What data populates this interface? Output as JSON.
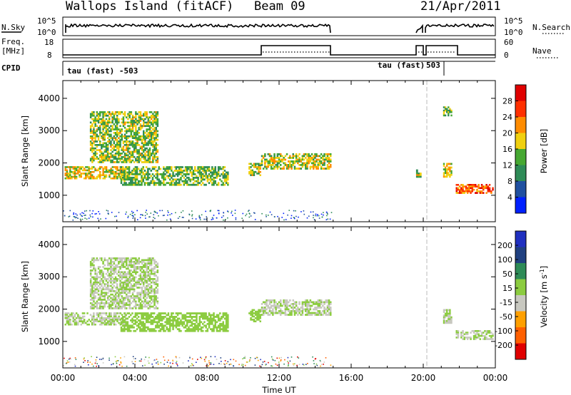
{
  "header": {
    "title": "Wallops Island (fitACF)",
    "beam": "Beam 09",
    "date": "21/Apr/2011"
  },
  "strip_labels": {
    "nsky": "N.Sky",
    "nsky_ticks": [
      "10^5",
      "10^0"
    ],
    "nsearch": "N.Search",
    "nsearch_ticks": [
      "10^5",
      "10^0"
    ],
    "freq_line1": "Freq.",
    "freq_line2": "[MHz]",
    "freq_ticks": [
      "18",
      "8"
    ],
    "nave": "Nave",
    "nave_ticks": [
      "60",
      "0"
    ],
    "cpid": "CPID"
  },
  "cpid_labels": [
    "tau (fast) -503",
    "tau (fast)",
    "503"
  ],
  "colors": {
    "power": [
      "#0020ff",
      "#2050a0",
      "#2e8b57",
      "#46a832",
      "#f0d010",
      "#ff8c00",
      "#ff3000",
      "#e00000"
    ],
    "velocity": [
      "#e00000",
      "#ff6000",
      "#ffa000",
      "#c8c8c0",
      "#8ccc40",
      "#2e8b57",
      "#204080",
      "#2030c0"
    ]
  },
  "chart_data": [
    {
      "type": "heatmap",
      "title": "Power [dB]",
      "xlabel": "",
      "ylabel": "Slant Range [km]",
      "x_ticks": [
        "00:00",
        "04:00",
        "08:00",
        "12:00",
        "16:00",
        "20:00",
        "00:00"
      ],
      "y_ticks": [
        "1000",
        "2000",
        "3000",
        "4000"
      ],
      "ylim": [
        180,
        4550
      ],
      "colorbar": {
        "label": "Power [dB]",
        "ticks": [
          "4",
          "8",
          "12",
          "16",
          "20",
          "24",
          "28"
        ],
        "range": [
          0,
          32
        ]
      },
      "echo_regions": [
        {
          "t_start": 0.1,
          "t_end": 3.5,
          "range_start": 1500,
          "range_end": 1900,
          "value": 18
        },
        {
          "t_start": 1.5,
          "t_end": 5.3,
          "range_start": 2000,
          "range_end": 3600,
          "value": 15
        },
        {
          "t_start": 3.2,
          "t_end": 9.2,
          "range_start": 1300,
          "range_end": 1900,
          "value": 14
        },
        {
          "t_start": 10.3,
          "t_end": 11.0,
          "range_start": 1600,
          "range_end": 2000,
          "value": 16
        },
        {
          "t_start": 11.0,
          "t_end": 14.9,
          "range_start": 1800,
          "range_end": 2300,
          "value": 17
        },
        {
          "t_start": 19.6,
          "t_end": 19.9,
          "range_start": 1550,
          "range_end": 1800,
          "value": 16
        },
        {
          "t_start": 21.1,
          "t_end": 21.6,
          "range_start": 3450,
          "range_end": 3750,
          "value": 14
        },
        {
          "t_start": 21.1,
          "t_end": 21.6,
          "range_start": 1550,
          "range_end": 2000,
          "value": 18
        },
        {
          "t_start": 21.8,
          "t_end": 23.9,
          "range_start": 1050,
          "range_end": 1350,
          "value": 25
        }
      ]
    },
    {
      "type": "heatmap",
      "title": "Velocity [m s^-1]",
      "xlabel": "Time UT",
      "ylabel": "Slant Range [km]",
      "x_ticks": [
        "00:00",
        "04:00",
        "08:00",
        "12:00",
        "16:00",
        "20:00",
        "00:00"
      ],
      "y_ticks": [
        "1000",
        "2000",
        "3000",
        "4000"
      ],
      "ylim": [
        180,
        4550
      ],
      "colorbar": {
        "label": "Velocity [m s",
        "label_sup": "-1",
        "label_end": "]",
        "ticks": [
          "200",
          "100",
          "50",
          "15",
          "-15",
          "-50",
          "-100",
          "-200"
        ],
        "range": [
          -250,
          250
        ]
      },
      "echo_regions": [
        {
          "t_start": 0.1,
          "t_end": 3.5,
          "range_start": 1500,
          "range_end": 1900,
          "value": 0
        },
        {
          "t_start": 1.5,
          "t_end": 5.3,
          "range_start": 2000,
          "range_end": 3600,
          "value": 0
        },
        {
          "t_start": 3.2,
          "t_end": 9.2,
          "range_start": 1300,
          "range_end": 1900,
          "value": 40
        },
        {
          "t_start": 10.3,
          "t_end": 11.0,
          "range_start": 1600,
          "range_end": 2000,
          "value": 30
        },
        {
          "t_start": 11.0,
          "t_end": 14.9,
          "range_start": 1800,
          "range_end": 2300,
          "value": 0
        },
        {
          "t_start": 21.1,
          "t_end": 21.6,
          "range_start": 1550,
          "range_end": 2000,
          "value": 0
        },
        {
          "t_start": 21.8,
          "t_end": 23.9,
          "range_start": 1050,
          "range_end": 1350,
          "value": 0
        }
      ]
    }
  ]
}
